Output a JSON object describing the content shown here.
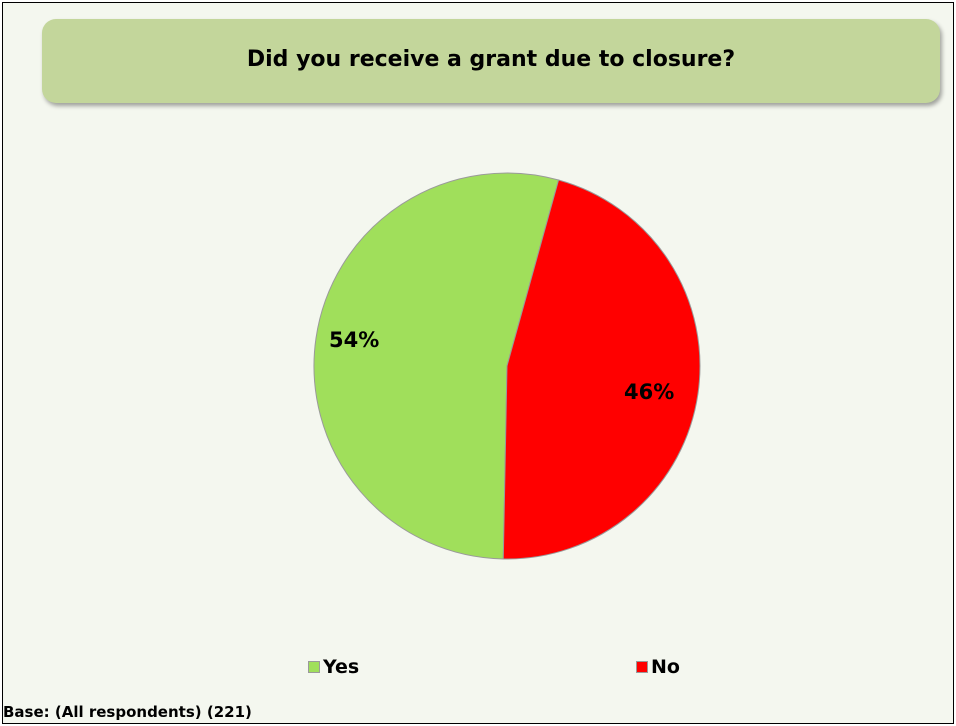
{
  "chart_data": {
    "type": "pie",
    "title": "Did you receive a grant due to closure?",
    "categories": [
      "Yes",
      "No"
    ],
    "values": [
      54,
      46
    ],
    "value_labels": [
      "54%",
      "46%"
    ],
    "colors": [
      "#a0df5b",
      "#ff0000"
    ],
    "legend_placement": "bottom",
    "legend": [
      {
        "label": "Yes",
        "color": "#a0df5b"
      },
      {
        "label": "No",
        "color": "#ff0000"
      }
    ]
  },
  "footnote": "Base: (All respondents) (221)"
}
